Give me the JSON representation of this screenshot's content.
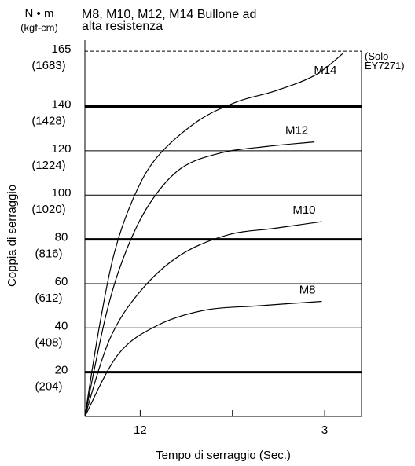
{
  "chart_data": {
    "type": "line",
    "title": "M8, M10, M12, M14 Bullone ad alta resistenza",
    "y_unit": "N • m",
    "y_unit_secondary": "(kgf-cm)",
    "ylabel": "Coppia di serraggio",
    "xlabel": "Tempo di serraggio (Sec.)",
    "annotation": "(Solo EY7271)",
    "limit_line": 165,
    "xlim": [
      0.4,
      3.4
    ],
    "xticks": [
      {
        "value": 1,
        "label": "12"
      },
      {
        "value": 2,
        "label": null
      },
      3
    ],
    "ylim": [
      0,
      170
    ],
    "yticks": [
      20,
      40,
      60,
      80,
      100,
      120,
      140,
      165
    ],
    "ytick_sublabels": [
      "(204)",
      "(408)",
      "(612)",
      "(816)",
      "(1020)",
      "(1224)",
      "(1428)",
      "(1683)"
    ],
    "bold_grid": [
      20,
      80,
      140
    ],
    "grid": true,
    "series": [
      {
        "name": "M14",
        "color": "#000000",
        "x": [
          0.4,
          0.55,
          0.72,
          0.93,
          1.18,
          1.61,
          2.04,
          2.46,
          2.89,
          3.2
        ],
        "values": [
          0,
          39,
          74,
          99,
          117,
          133,
          142,
          147,
          154,
          164
        ]
      },
      {
        "name": "M12",
        "color": "#000000",
        "x": [
          0.4,
          0.63,
          0.84,
          1.1,
          1.44,
          1.87,
          2.38,
          2.89
        ],
        "values": [
          0,
          46,
          74,
          96,
          112,
          119,
          122,
          124
        ]
      },
      {
        "name": "M10",
        "color": "#000000",
        "x": [
          0.4,
          0.67,
          1.01,
          1.44,
          1.95,
          2.46,
          2.97
        ],
        "values": [
          0,
          35,
          57,
          73,
          82,
          85,
          88
        ]
      },
      {
        "name": "M8",
        "color": "#000000",
        "x": [
          0.4,
          0.76,
          1.18,
          1.7,
          2.29,
          2.97
        ],
        "values": [
          0,
          28,
          41,
          48,
          50,
          52
        ]
      }
    ]
  }
}
